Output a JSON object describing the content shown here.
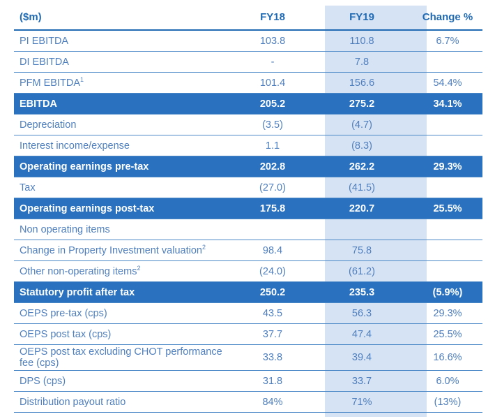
{
  "header": {
    "label": "($m)",
    "fy18": "FY18",
    "fy19": "FY19",
    "change": "Change %"
  },
  "rows": [
    {
      "label": "PI EBITDA",
      "sup": "",
      "fy18": "103.8",
      "fy19": "110.8",
      "change": "6.7%"
    },
    {
      "label": "DI EBITDA",
      "sup": "",
      "fy18": "-",
      "fy19": "7.8",
      "change": ""
    },
    {
      "label": "PFM EBITDA",
      "sup": "1",
      "fy18": "101.4",
      "fy19": "156.6",
      "change": "54.4%"
    },
    {
      "label": "EBITDA",
      "sup": "",
      "fy18": "205.2",
      "fy19": "275.2",
      "change": "34.1%"
    },
    {
      "label": "Depreciation",
      "sup": "",
      "fy18": "(3.5)",
      "fy19": "(4.7)",
      "change": ""
    },
    {
      "label": "Interest income/expense",
      "sup": "",
      "fy18": "1.1",
      "fy19": "(8.3)",
      "change": ""
    },
    {
      "label": "Operating earnings pre-tax",
      "sup": "",
      "fy18": "202.8",
      "fy19": "262.2",
      "change": "29.3%"
    },
    {
      "label": "Tax",
      "sup": "",
      "fy18": "(27.0)",
      "fy19": "(41.5)",
      "change": ""
    },
    {
      "label": "Operating earnings post-tax",
      "sup": "",
      "fy18": "175.8",
      "fy19": "220.7",
      "change": "25.5%"
    },
    {
      "label": "Non operating items",
      "sup": "",
      "fy18": "",
      "fy19": "",
      "change": ""
    },
    {
      "label": "Change in Property Investment valuation",
      "sup": "2",
      "fy18": "98.4",
      "fy19": "75.8",
      "change": ""
    },
    {
      "label": "Other non-operating items",
      "sup": "2",
      "fy18": "(24.0)",
      "fy19": "(61.2)",
      "change": ""
    },
    {
      "label": "Statutory profit after tax",
      "sup": "",
      "fy18": "250.2",
      "fy19": "235.3",
      "change": "(5.9%)"
    },
    {
      "label": "OEPS pre-tax (cps)",
      "sup": "",
      "fy18": "43.5",
      "fy19": "56.3",
      "change": "29.3%"
    },
    {
      "label": "OEPS post tax (cps)",
      "sup": "",
      "fy18": "37.7",
      "fy19": "47.4",
      "change": "25.5%"
    },
    {
      "label": "OEPS post tax excluding CHOT performance fee (cps)",
      "sup": "",
      "fy18": "33.8",
      "fy19": "39.4",
      "change": "16.6%"
    },
    {
      "label": "DPS (cps)",
      "sup": "",
      "fy18": "31.8",
      "fy19": "33.7",
      "change": "6.0%"
    },
    {
      "label": "Distribution payout ratio",
      "sup": "",
      "fy18": "84%",
      "fy19": "71%",
      "change": "(13%)"
    }
  ],
  "colors": {
    "accent": "#2a72bf",
    "highlight_column": "#d6e3f4",
    "text": "#4f7fbd"
  }
}
